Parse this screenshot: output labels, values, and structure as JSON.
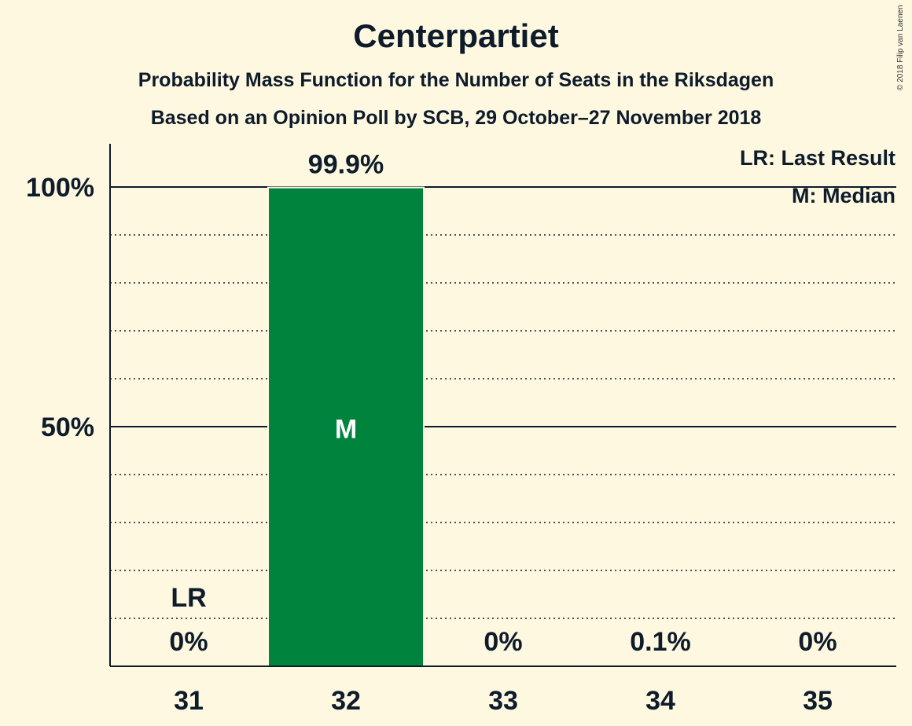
{
  "header": {
    "title": "Centerpartiet",
    "subtitle1": "Probability Mass Function for the Number of Seats in the Riksdagen",
    "subtitle2": "Based on an Opinion Poll by SCB, 29 October–27 November 2018",
    "copyright": "© 2018 Filip van Laenen"
  },
  "chart_data": {
    "type": "bar",
    "title": "Centerpartiet",
    "categories": [
      "31",
      "32",
      "33",
      "34",
      "35"
    ],
    "values": [
      0,
      99.9,
      0,
      0.1,
      0
    ],
    "value_labels": [
      "0%",
      "99.9%",
      "0%",
      "0.1%",
      "0%"
    ],
    "ylim": [
      0,
      100
    ],
    "yticks": [
      {
        "value": 50,
        "label": "50%"
      },
      {
        "value": 100,
        "label": "100%"
      }
    ],
    "minor_gridlines": [
      10,
      20,
      30,
      40,
      60,
      70,
      80,
      90
    ],
    "last_result": {
      "category": "31",
      "marker": "LR"
    },
    "median": {
      "category": "32",
      "marker": "M"
    },
    "legend": [
      "LR: Last Result",
      "M: Median"
    ],
    "legend_position": "top-right",
    "colors": {
      "bar": "#00843d",
      "background": "#fff8e1",
      "text": "#0d1b2a",
      "median_text": "#ffffff"
    }
  }
}
